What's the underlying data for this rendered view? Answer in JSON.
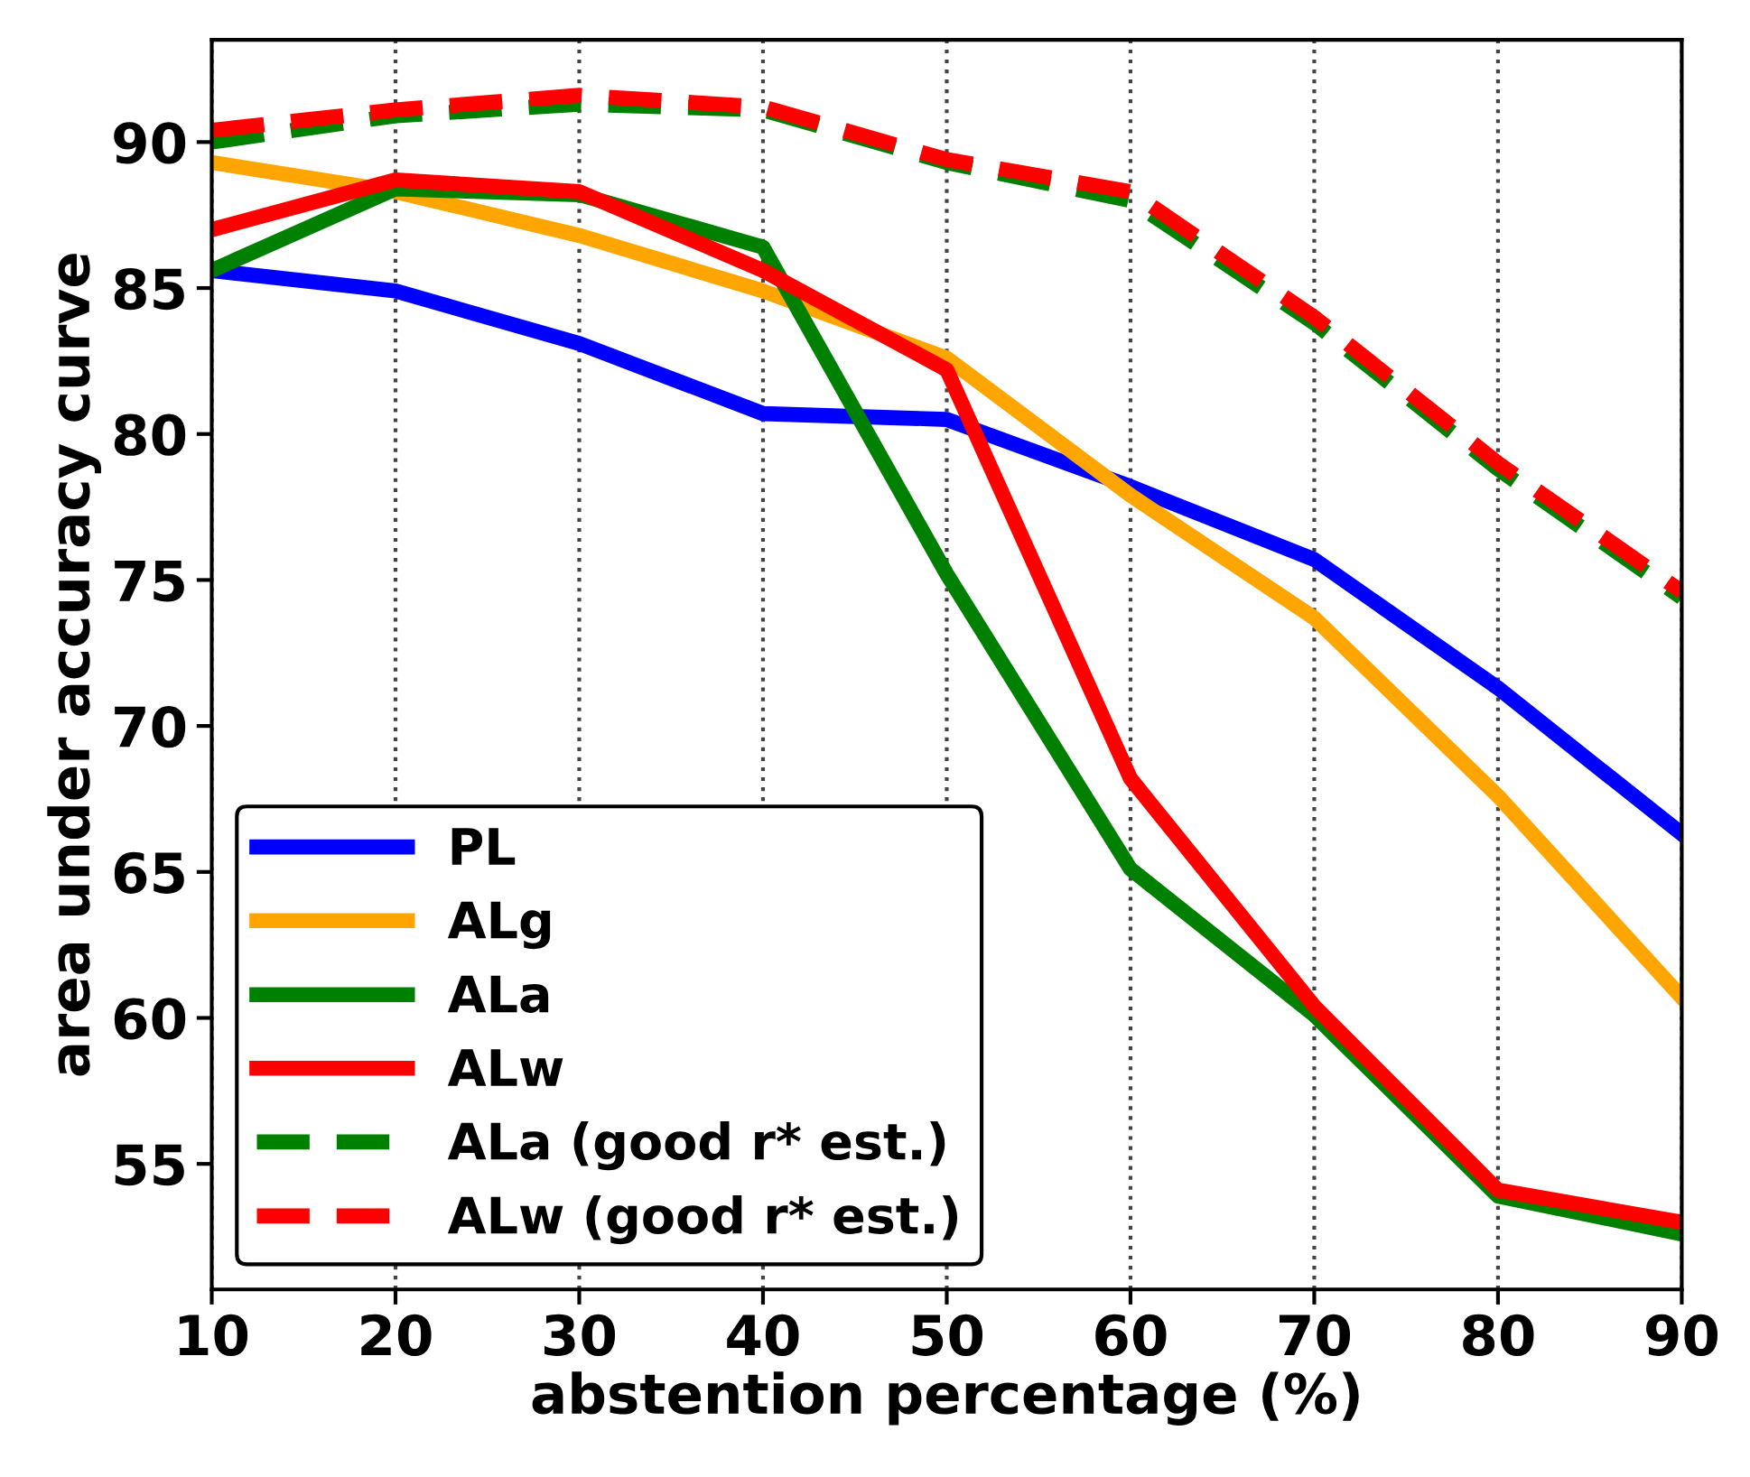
{
  "chart_data": {
    "type": "line",
    "xlabel": "abstention percentage (%)",
    "ylabel": "area under accuracy curve",
    "x": [
      10,
      20,
      30,
      40,
      50,
      60,
      70,
      80,
      90
    ],
    "series": [
      {
        "name": "PL",
        "color": "#0000ff",
        "line_style": "solid",
        "values": [
          85.6,
          84.9,
          83.1,
          80.7,
          80.5,
          78.2,
          75.7,
          71.3,
          66.3
        ]
      },
      {
        "name": "ALg",
        "color": "#ffa500",
        "line_style": "solid",
        "values": [
          89.3,
          88.3,
          86.8,
          84.9,
          82.6,
          77.9,
          73.7,
          67.6,
          60.7
        ]
      },
      {
        "name": "ALa",
        "color": "#008000",
        "line_style": "solid",
        "values": [
          85.6,
          88.4,
          88.2,
          86.4,
          75.2,
          65.1,
          60.1,
          53.9,
          52.6
        ]
      },
      {
        "name": "ALw",
        "color": "#ff0000",
        "line_style": "solid",
        "values": [
          87.0,
          88.7,
          88.3,
          85.6,
          82.2,
          68.2,
          60.4,
          54.1,
          53.0
        ]
      },
      {
        "name": "ALa (good r* est.)",
        "color": "#008000",
        "line_style": "dashed",
        "values": [
          90.0,
          90.9,
          91.3,
          91.1,
          89.3,
          88.0,
          83.8,
          78.8,
          74.4
        ]
      },
      {
        "name": "ALw (good r* est.)",
        "color": "#ff0000",
        "line_style": "dashed",
        "values": [
          90.4,
          91.1,
          91.6,
          91.2,
          89.4,
          88.3,
          84.0,
          79.0,
          74.6
        ]
      }
    ],
    "xlim": [
      10,
      90
    ],
    "ylim": [
      50.7,
      93.5
    ],
    "xticks": [
      10,
      20,
      30,
      40,
      50,
      60,
      70,
      80,
      90
    ],
    "yticks": [
      55,
      60,
      65,
      70,
      75,
      80,
      85,
      90
    ],
    "grid": "x",
    "legend": "bottom left",
    "marker": "none"
  }
}
